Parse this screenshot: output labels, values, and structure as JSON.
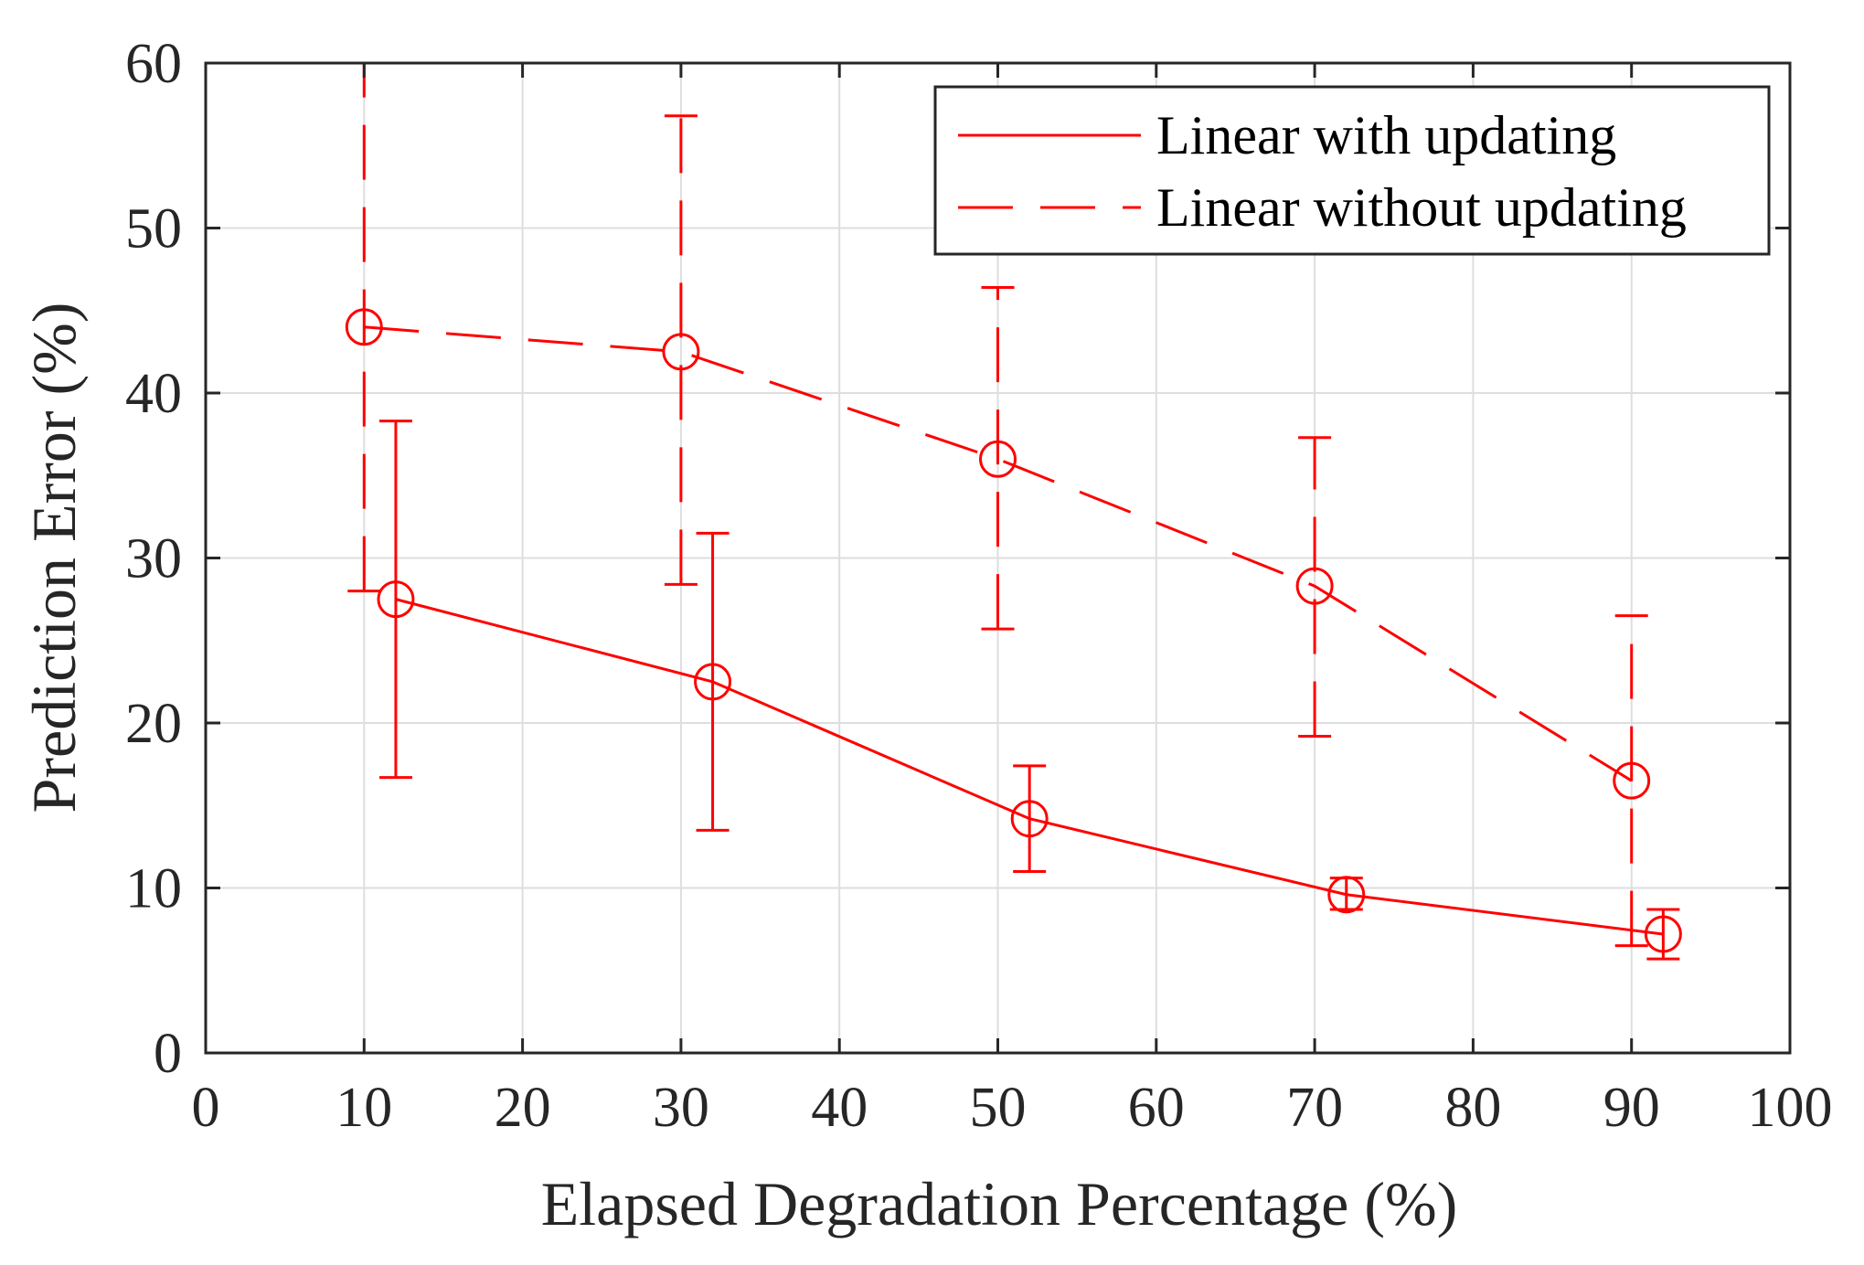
{
  "chart_data": {
    "type": "line",
    "title": "",
    "xlabel": "Elapsed Degradation Percentage (%)",
    "ylabel": "Prediction Error (%)",
    "xlim": [
      0,
      100
    ],
    "ylim": [
      0,
      60
    ],
    "xticks": [
      0,
      10,
      20,
      30,
      40,
      50,
      60,
      70,
      80,
      90,
      100
    ],
    "yticks": [
      0,
      10,
      20,
      30,
      40,
      50,
      60
    ],
    "grid": true,
    "legend_position": "top-right",
    "color": "#ff0000",
    "series": [
      {
        "name": "Linear with updating",
        "style": "solid",
        "marker": "circle",
        "x": [
          12,
          32,
          52,
          72,
          92
        ],
        "y": [
          27.5,
          22.5,
          14.2,
          9.6,
          7.2
        ],
        "error_lower": [
          16.7,
          13.5,
          11.0,
          8.7,
          5.7
        ],
        "error_upper": [
          38.3,
          31.5,
          17.4,
          10.6,
          8.7
        ]
      },
      {
        "name": "Linear without updating",
        "style": "dashed",
        "marker": "circle",
        "x": [
          10,
          30,
          50,
          70,
          90
        ],
        "y": [
          44.0,
          42.5,
          36.0,
          28.3,
          16.5
        ],
        "error_lower": [
          28.0,
          28.4,
          25.7,
          19.2,
          6.5
        ],
        "error_upper": [
          60.0,
          56.8,
          46.4,
          37.3,
          26.5
        ]
      }
    ]
  }
}
